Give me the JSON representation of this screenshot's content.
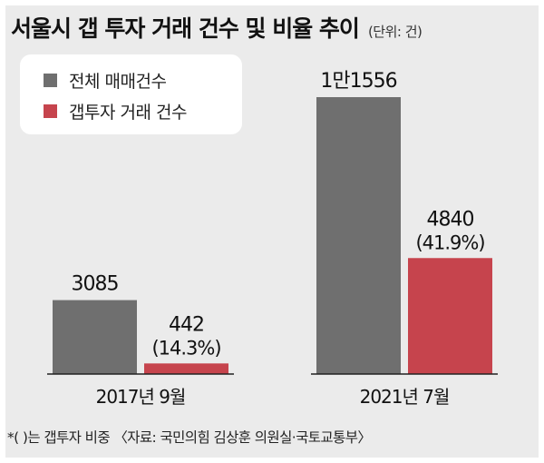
{
  "title": "서울시 갭 투자 거래 건수 및 비율 추이",
  "unit": "(단위: 건)",
  "colors": {
    "background": "#ebebeb",
    "total": "#6f6f6f",
    "gap": "#c6444d",
    "baseline": "#222222"
  },
  "legend": {
    "items": [
      {
        "label": "전체 매매건수",
        "color": "#6f6f6f"
      },
      {
        "label": "갭투자 거래 건수",
        "color": "#c6444d"
      }
    ]
  },
  "chart_data": {
    "type": "bar",
    "categories": [
      "2017년 9월",
      "2021년 7월"
    ],
    "series": [
      {
        "name": "전체 매매건수",
        "values": [
          3085,
          11556
        ],
        "labels": [
          "3085",
          "1만1556"
        ]
      },
      {
        "name": "갭투자 거래 건수",
        "values": [
          442,
          4840
        ],
        "labels": [
          "442",
          "4840"
        ],
        "sublabels": [
          "(14.3%)",
          "(41.9%)"
        ]
      }
    ]
  },
  "footer": "*( )는 갭투자 비중 〈자료: 국민의힘 김상훈 의원실·국토교통부〉"
}
